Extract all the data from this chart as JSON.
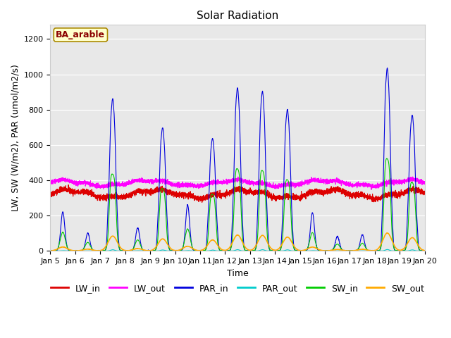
{
  "title": "Solar Radiation",
  "xlabel": "Time",
  "ylabel": "LW, SW (W/m2), PAR (umol/m2/s)",
  "annotation": "BA_arable",
  "ylim": [
    0,
    1280
  ],
  "yticks": [
    0,
    200,
    400,
    600,
    800,
    1000,
    1200
  ],
  "xtick_labels": [
    "Jan 5",
    "Jan 6",
    "Jan 7",
    "Jan 8",
    "Jan 9",
    "Jan 10",
    "Jan 11",
    "Jan 12",
    "Jan 13",
    "Jan 14",
    "Jan 15",
    "Jan 16",
    "Jan 17",
    "Jan 18",
    "Jan 19",
    "Jan 20"
  ],
  "line_colors": {
    "LW_in": "#dd0000",
    "LW_out": "#ff00ff",
    "PAR_in": "#0000dd",
    "PAR_out": "#00cccc",
    "SW_in": "#00cc00",
    "SW_out": "#ffaa00"
  },
  "plot_bg": "#e8e8e8",
  "fig_bg": "#ffffff",
  "title_fontsize": 11,
  "tick_fontsize": 8,
  "label_fontsize": 9,
  "legend_fontsize": 9,
  "par_peaks": {
    "0": 220,
    "1": 100,
    "2": 840,
    "3": 130,
    "4": 680,
    "5": 260,
    "6": 620,
    "7": 900,
    "8": 880,
    "9": 780,
    "10": 215,
    "11": 80,
    "12": 90,
    "13": 1010,
    "14": 750
  },
  "lw_in_base": 310,
  "lw_out_base": 375,
  "sw_scale": 0.48,
  "sw_out_scale": 0.1
}
